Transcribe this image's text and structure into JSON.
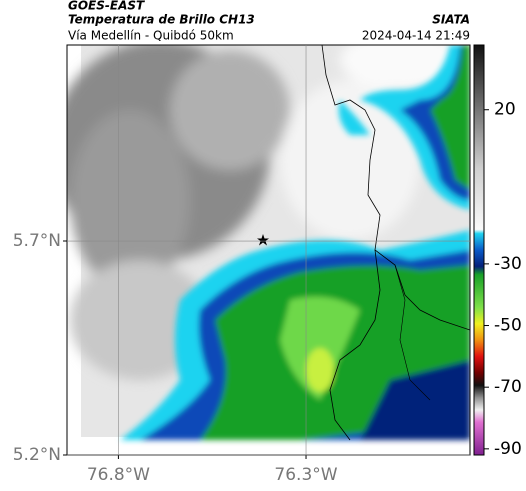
{
  "header": {
    "title": "GOES-EAST",
    "subtitle": "Temperatura de Brillo CH13",
    "route": "Vía Medellín - Quibdó 50km",
    "source": "SIATA",
    "timestamp": "2024-04-14 21:49"
  },
  "map": {
    "xlim": [
      -76.937,
      -75.863
    ],
    "ylim": [
      5.2,
      6.158
    ],
    "xticks": [
      {
        "value": -76.8,
        "label": "76.8°W"
      },
      {
        "value": -76.3,
        "label": "76.3°W"
      }
    ],
    "yticks": [
      {
        "value": 5.7,
        "label": "5.7°N"
      },
      {
        "value": 5.2,
        "label": "5.2°N"
      }
    ]
  },
  "colorbar": {
    "range": [
      -92,
      41
    ],
    "ticks": [
      20,
      -30,
      -50,
      -70,
      -90
    ]
  }
}
